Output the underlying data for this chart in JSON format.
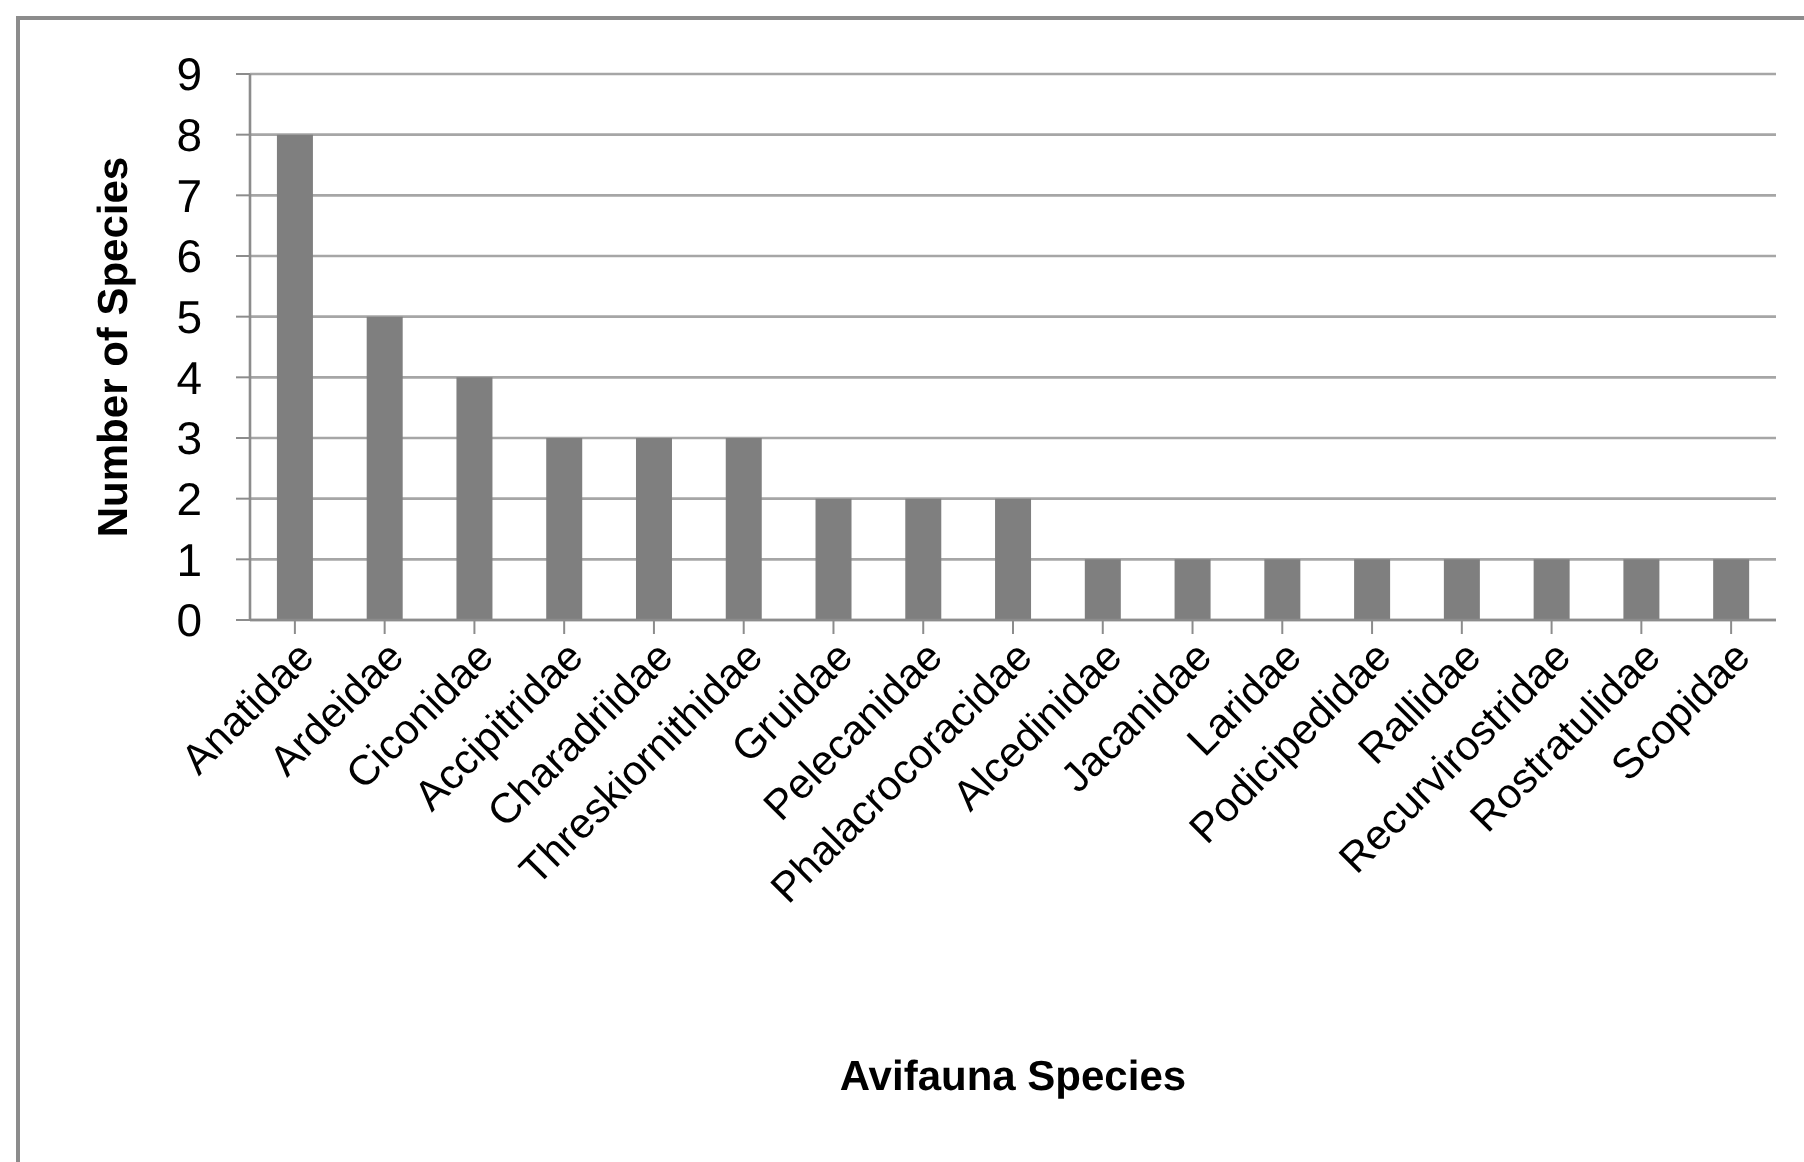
{
  "chart_data": {
    "type": "bar",
    "xlabel": "Avifauna Species",
    "ylabel": "Number of Species",
    "categories": [
      "Anatidae",
      "Ardeidae",
      "Ciconidae",
      "Accipitridae",
      "Charadriidae",
      "Threskiornithidae",
      "Gruidae",
      "Pelecanidae",
      "Phalacrocoracidae",
      "Alcedinidae",
      "Jacanidae",
      "Laridae",
      "Podicipedidae",
      "Rallidae",
      "Recurvirostridae",
      "Rostratulidae",
      "Scopidae"
    ],
    "values": [
      8,
      5,
      4,
      3,
      3,
      3,
      2,
      2,
      2,
      1,
      1,
      1,
      1,
      1,
      1,
      1,
      1
    ],
    "color": "#7f7f7f",
    "ylim": [
      0,
      9
    ],
    "yticks": [
      0,
      1,
      2,
      3,
      4,
      5,
      6,
      7,
      8,
      9
    ],
    "grid": "y"
  }
}
